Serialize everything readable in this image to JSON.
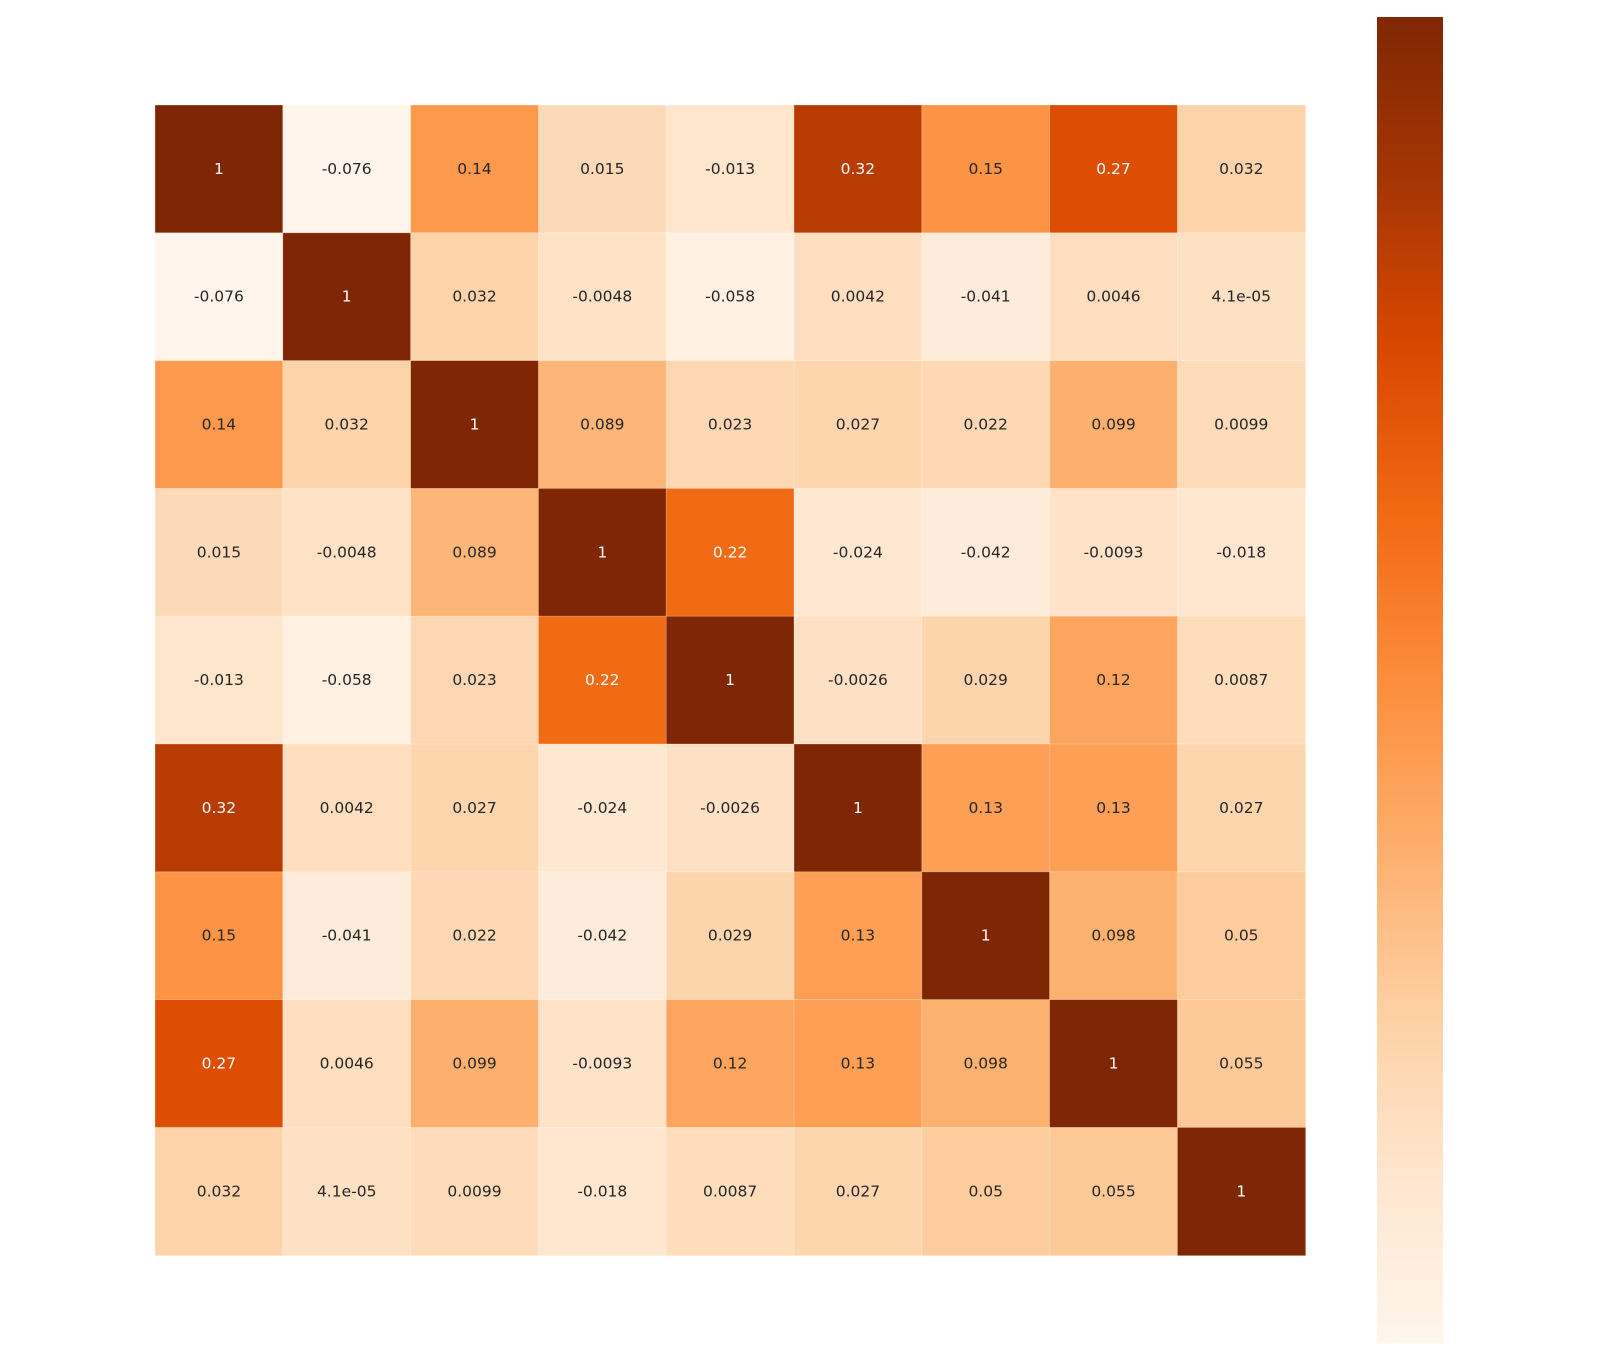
{
  "chart_data": {
    "type": "heatmap",
    "title": "",
    "xlabel": "",
    "ylabel": "",
    "row_labels": [],
    "col_labels": [],
    "matrix": [
      [
        1,
        -0.076,
        0.14,
        0.015,
        -0.013,
        0.32,
        0.15,
        0.27,
        0.032
      ],
      [
        -0.076,
        1,
        0.032,
        -0.0048,
        -0.058,
        0.0042,
        -0.041,
        0.0046,
        4.1e-05
      ],
      [
        0.14,
        0.032,
        1,
        0.089,
        0.023,
        0.027,
        0.022,
        0.099,
        0.0099
      ],
      [
        0.015,
        -0.0048,
        0.089,
        1,
        0.22,
        -0.024,
        -0.042,
        -0.0093,
        -0.018
      ],
      [
        -0.013,
        -0.058,
        0.023,
        0.22,
        1,
        -0.0026,
        0.029,
        0.12,
        0.0087
      ],
      [
        0.32,
        0.0042,
        0.027,
        -0.024,
        -0.0026,
        1,
        0.13,
        0.13,
        0.027
      ],
      [
        0.15,
        -0.041,
        0.022,
        -0.042,
        0.029,
        0.13,
        1,
        0.098,
        0.05
      ],
      [
        0.27,
        0.0046,
        0.099,
        -0.0093,
        0.12,
        0.13,
        0.098,
        1,
        0.055
      ],
      [
        0.032,
        4.1e-05,
        0.0099,
        -0.018,
        0.0087,
        0.027,
        0.05,
        0.055,
        1
      ]
    ],
    "annotations": [
      [
        "1",
        "-0.076",
        "0.14",
        "0.015",
        "-0.013",
        "0.32",
        "0.15",
        "0.27",
        "0.032"
      ],
      [
        "-0.076",
        "1",
        "0.032",
        "-0.0048",
        "-0.058",
        "0.0042",
        "-0.041",
        "0.0046",
        "4.1e-05"
      ],
      [
        "0.14",
        "0.032",
        "1",
        "0.089",
        "0.023",
        "0.027",
        "0.022",
        "0.099",
        "0.0099"
      ],
      [
        "0.015",
        "-0.0048",
        "0.089",
        "1",
        "0.22",
        "-0.024",
        "-0.042",
        "-0.0093",
        "-0.018"
      ],
      [
        "-0.013",
        "-0.058",
        "0.023",
        "0.22",
        "1",
        "-0.0026",
        "0.029",
        "0.12",
        "0.0087"
      ],
      [
        "0.32",
        "0.0042",
        "0.027",
        "-0.024",
        "-0.0026",
        "1",
        "0.13",
        "0.13",
        "0.027"
      ],
      [
        "0.15",
        "-0.041",
        "0.022",
        "-0.042",
        "0.029",
        "0.13",
        "1",
        "0.098",
        "0.05"
      ],
      [
        "0.27",
        "0.0046",
        "0.099",
        "-0.0093",
        "0.12",
        "0.13",
        "0.098",
        "1",
        "0.055"
      ],
      [
        "0.032",
        "4.1e-05",
        "0.0099",
        "-0.018",
        "0.0087",
        "0.027",
        "0.05",
        "0.055",
        "1"
      ]
    ],
    "color_scale": {
      "name": "Oranges",
      "vmin": -0.076,
      "vmax": 0.4,
      "stops": [
        "#fff5eb",
        "#fee6ce",
        "#fdd0a2",
        "#fdae6b",
        "#fd8d3c",
        "#f16913",
        "#d94801",
        "#a63603",
        "#7f2704"
      ]
    },
    "colorbar": {
      "visible": true,
      "position": "right",
      "tick_labels": []
    },
    "grid": false,
    "text_colors": {
      "dark": "#262626",
      "light": "#ffffff"
    }
  }
}
